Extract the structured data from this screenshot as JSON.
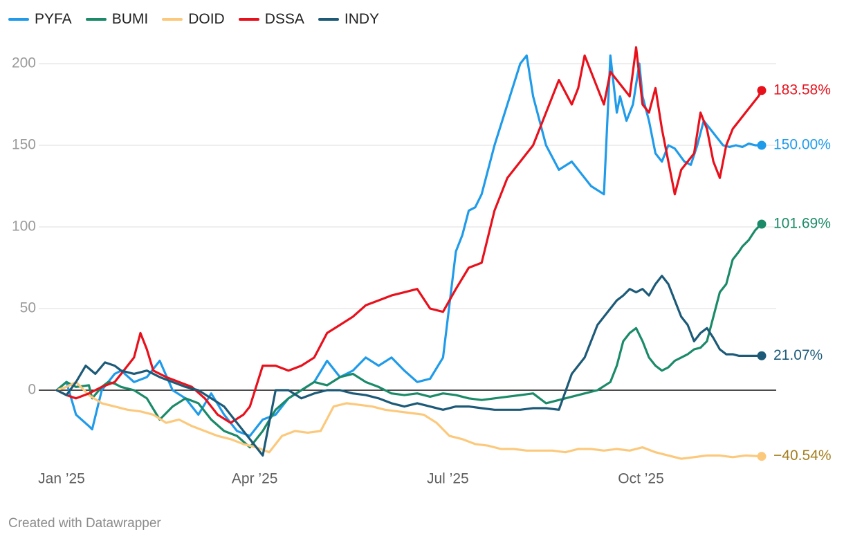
{
  "chart_data": {
    "type": "line",
    "title": "",
    "xlabel": "",
    "ylabel": "",
    "ylim": [
      -45,
      215
    ],
    "y_ticks": [
      0,
      50,
      100,
      150,
      200
    ],
    "y_tick_labels": [
      "0",
      "50",
      "100",
      "150",
      "200"
    ],
    "x_range": [
      0,
      10.95
    ],
    "x_ticks": [
      0,
      3,
      6,
      9
    ],
    "x_tick_labels": [
      "Jan ’25",
      "Apr ’25",
      "Jul ’25",
      "Oct ’25"
    ],
    "x_unit": "months since Jan 2025",
    "grid": true,
    "legend_position": "top-left",
    "series": [
      {
        "name": "PYFA",
        "color": "#1f9bea",
        "end_label": "150.00%",
        "end_label_color": "#1f9bea",
        "x": [
          0,
          0.15,
          0.3,
          0.5,
          0.55,
          0.7,
          0.8,
          0.9,
          1.0,
          1.2,
          1.4,
          1.6,
          1.8,
          2.0,
          2.2,
          2.4,
          2.6,
          2.8,
          3.0,
          3.2,
          3.4,
          3.6,
          3.8,
          4.0,
          4.2,
          4.4,
          4.6,
          4.8,
          5.0,
          5.2,
          5.4,
          5.6,
          5.8,
          6.0,
          6.2,
          6.3,
          6.4,
          6.5,
          6.6,
          6.8,
          7.0,
          7.2,
          7.3,
          7.4,
          7.6,
          7.8,
          8.0,
          8.3,
          8.5,
          8.6,
          8.7,
          8.75,
          8.85,
          8.95,
          9.05,
          9.1,
          9.2,
          9.3,
          9.4,
          9.5,
          9.6,
          9.75,
          9.85,
          9.95,
          10.05,
          10.15,
          10.25,
          10.35,
          10.45,
          10.55,
          10.65,
          10.75,
          10.85,
          10.95
        ],
        "values": [
          0,
          5,
          -15,
          -22,
          -24,
          0,
          5,
          10,
          12,
          5,
          8,
          18,
          0,
          -5,
          -15,
          -2,
          -15,
          -25,
          -28,
          -18,
          -15,
          -5,
          0,
          5,
          18,
          8,
          12,
          20,
          15,
          20,
          12,
          5,
          7,
          20,
          85,
          95,
          110,
          112,
          120,
          150,
          175,
          200,
          205,
          180,
          150,
          135,
          140,
          125,
          120,
          205,
          170,
          180,
          165,
          175,
          200,
          180,
          165,
          145,
          140,
          150,
          148,
          140,
          138,
          150,
          165,
          160,
          155,
          150,
          149,
          150,
          149,
          151,
          150,
          150
        ]
      },
      {
        "name": "BUMI",
        "color": "#1a8a68",
        "end_label": "101.69%",
        "end_label_color": "#1a8a68",
        "x": [
          0,
          0.15,
          0.3,
          0.5,
          0.55,
          0.7,
          0.8,
          0.9,
          1.0,
          1.2,
          1.4,
          1.6,
          1.8,
          2.0,
          2.2,
          2.4,
          2.6,
          2.8,
          3.0,
          3.2,
          3.4,
          3.6,
          3.8,
          4.0,
          4.2,
          4.4,
          4.6,
          4.8,
          5.0,
          5.2,
          5.4,
          5.6,
          5.8,
          6.0,
          6.2,
          6.4,
          6.6,
          6.8,
          7.0,
          7.2,
          7.4,
          7.6,
          7.8,
          8.0,
          8.2,
          8.4,
          8.6,
          8.7,
          8.8,
          8.9,
          9.0,
          9.1,
          9.2,
          9.3,
          9.4,
          9.5,
          9.6,
          9.7,
          9.8,
          9.9,
          10.0,
          10.1,
          10.2,
          10.3,
          10.4,
          10.5,
          10.6,
          10.65,
          10.7,
          10.75,
          10.8,
          10.85,
          10.9,
          10.95
        ],
        "values": [
          0,
          5,
          2,
          3,
          -5,
          2,
          5,
          4,
          2,
          0,
          -5,
          -18,
          -10,
          -5,
          -8,
          -18,
          -25,
          -28,
          -35,
          -25,
          -12,
          -5,
          0,
          5,
          3,
          8,
          10,
          5,
          2,
          -2,
          -3,
          -2,
          -4,
          -2,
          -3,
          -5,
          -6,
          -5,
          -4,
          -3,
          -2,
          -8,
          -6,
          -4,
          -2,
          0,
          5,
          15,
          30,
          35,
          38,
          30,
          20,
          15,
          12,
          14,
          18,
          20,
          22,
          25,
          26,
          30,
          45,
          60,
          65,
          80,
          85,
          88,
          90,
          92,
          95,
          98,
          100,
          101.69
        ]
      },
      {
        "name": "DOID",
        "color": "#fcc97c",
        "end_label": "−40.54%",
        "end_label_color": "#a37d1c",
        "x": [
          0,
          0.15,
          0.3,
          0.5,
          0.7,
          0.9,
          1.1,
          1.3,
          1.5,
          1.7,
          1.9,
          2.1,
          2.3,
          2.5,
          2.7,
          2.9,
          3.1,
          3.3,
          3.5,
          3.7,
          3.9,
          4.1,
          4.3,
          4.5,
          4.7,
          4.9,
          5.1,
          5.3,
          5.5,
          5.7,
          5.9,
          6.1,
          6.3,
          6.5,
          6.7,
          6.9,
          7.1,
          7.3,
          7.5,
          7.7,
          7.9,
          8.1,
          8.3,
          8.5,
          8.7,
          8.9,
          9.1,
          9.3,
          9.5,
          9.7,
          9.9,
          10.1,
          10.3,
          10.5,
          10.7,
          10.95
        ],
        "values": [
          0,
          2,
          5,
          -3,
          -8,
          -10,
          -12,
          -13,
          -15,
          -20,
          -18,
          -22,
          -25,
          -28,
          -30,
          -33,
          -35,
          -38,
          -28,
          -25,
          -26,
          -25,
          -10,
          -8,
          -9,
          -10,
          -12,
          -13,
          -14,
          -15,
          -20,
          -28,
          -30,
          -33,
          -34,
          -36,
          -36,
          -37,
          -37,
          -37,
          -38,
          -36,
          -36,
          -37,
          -36,
          -37,
          -35,
          -38,
          -40,
          -42,
          -41,
          -40,
          -40,
          -41,
          -40,
          -40.54
        ]
      },
      {
        "name": "DSSA",
        "color": "#e8101b",
        "end_label": "183.58%",
        "end_label_color": "#e8101b",
        "x": [
          0,
          0.15,
          0.3,
          0.5,
          0.7,
          0.9,
          1.1,
          1.2,
          1.3,
          1.4,
          1.5,
          1.7,
          1.9,
          2.1,
          2.3,
          2.5,
          2.7,
          2.9,
          3.0,
          3.2,
          3.4,
          3.6,
          3.8,
          4.0,
          4.2,
          4.4,
          4.6,
          4.8,
          5.0,
          5.2,
          5.4,
          5.6,
          5.8,
          6.0,
          6.2,
          6.4,
          6.6,
          6.8,
          7.0,
          7.2,
          7.4,
          7.6,
          7.8,
          8.0,
          8.1,
          8.2,
          8.3,
          8.4,
          8.5,
          8.6,
          8.7,
          8.8,
          8.9,
          9.0,
          9.1,
          9.2,
          9.3,
          9.4,
          9.5,
          9.6,
          9.7,
          9.8,
          9.9,
          10.0,
          10.1,
          10.2,
          10.3,
          10.4,
          10.5,
          10.6,
          10.7,
          10.8,
          10.9,
          10.95
        ],
        "values": [
          0,
          -3,
          -5,
          -2,
          2,
          5,
          15,
          20,
          35,
          25,
          12,
          8,
          5,
          2,
          -5,
          -15,
          -20,
          -15,
          -10,
          15,
          15,
          12,
          15,
          20,
          35,
          40,
          45,
          52,
          55,
          58,
          60,
          62,
          50,
          48,
          62,
          75,
          78,
          110,
          130,
          140,
          150,
          170,
          190,
          175,
          185,
          205,
          195,
          185,
          175,
          195,
          190,
          185,
          180,
          210,
          175,
          170,
          185,
          160,
          140,
          120,
          135,
          140,
          145,
          170,
          160,
          140,
          130,
          150,
          160,
          165,
          170,
          175,
          180,
          183.58
        ]
      },
      {
        "name": "INDY",
        "color": "#1c5a78",
        "end_label": "21.07%",
        "end_label_color": "#1c5a78",
        "x": [
          0,
          0.15,
          0.3,
          0.45,
          0.6,
          0.75,
          0.9,
          1.0,
          1.2,
          1.4,
          1.6,
          1.8,
          2.0,
          2.2,
          2.4,
          2.6,
          2.8,
          3.0,
          3.2,
          3.4,
          3.6,
          3.8,
          4.0,
          4.2,
          4.4,
          4.6,
          4.8,
          5.0,
          5.2,
          5.4,
          5.6,
          5.8,
          6.0,
          6.2,
          6.4,
          6.6,
          6.8,
          7.0,
          7.2,
          7.4,
          7.6,
          7.8,
          8.0,
          8.2,
          8.4,
          8.6,
          8.7,
          8.8,
          8.9,
          9.0,
          9.1,
          9.2,
          9.3,
          9.4,
          9.5,
          9.6,
          9.7,
          9.8,
          9.9,
          10.0,
          10.1,
          10.2,
          10.3,
          10.4,
          10.5,
          10.6,
          10.7,
          10.8,
          10.9,
          10.95
        ],
        "values": [
          0,
          -3,
          5,
          15,
          10,
          17,
          15,
          12,
          10,
          12,
          8,
          5,
          2,
          0,
          -5,
          -10,
          -20,
          -30,
          -40,
          0,
          0,
          -5,
          -2,
          0,
          0,
          -2,
          -3,
          -5,
          -8,
          -10,
          -8,
          -10,
          -12,
          -10,
          -10,
          -11,
          -12,
          -12,
          -12,
          -11,
          -11,
          -12,
          10,
          20,
          40,
          50,
          55,
          58,
          62,
          60,
          62,
          58,
          65,
          70,
          65,
          55,
          45,
          40,
          30,
          35,
          38,
          32,
          25,
          22,
          22,
          21,
          21,
          21,
          21,
          21.07
        ]
      }
    ]
  },
  "legend": {
    "items": [
      "PYFA",
      "BUMI",
      "DOID",
      "DSSA",
      "INDY"
    ]
  },
  "footer": {
    "credit": "Created with Datawrapper"
  }
}
